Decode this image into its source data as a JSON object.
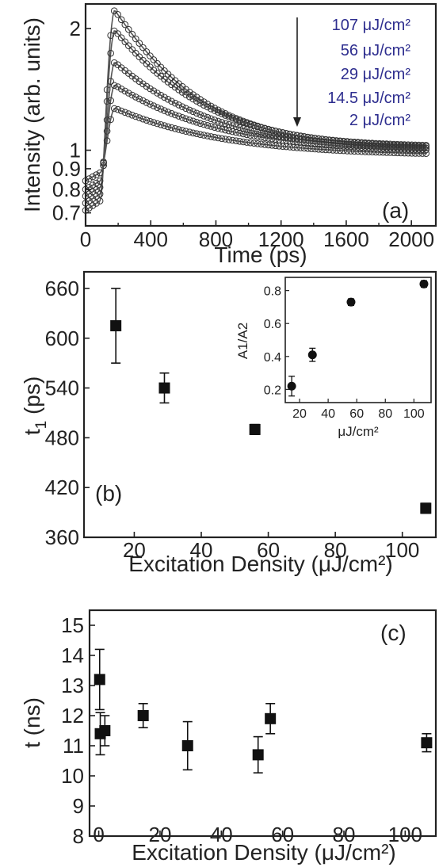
{
  "figure": {
    "panel_a": {
      "label": "(a)",
      "xlabel": "Time (ps)",
      "ylabel": "Intensity (arb. units)",
      "xticks": [
        "0",
        "400",
        "800",
        "1200",
        "1600",
        "2000"
      ],
      "yticks": [
        "0.7",
        "0.8",
        "0.9",
        "1",
        "2"
      ],
      "legend": [
        "107 μJ/cm²",
        "56 μJ/cm²",
        "29 μJ/cm²",
        "14.5 μJ/cm²",
        "2 μJ/cm²"
      ]
    },
    "panel_b": {
      "label": "(b)",
      "xlabel": "Excitation Density (μJ/cm²)",
      "ylabel_main": "t",
      "ylabel_sub": "1",
      "ylabel_unit": " (ps)",
      "xticks": [
        "20",
        "40",
        "60",
        "80",
        "100"
      ],
      "yticks": [
        "360",
        "420",
        "480",
        "540",
        "600",
        "660"
      ],
      "inset": {
        "ylabel": "A1/A2",
        "xlabel": "μJ/cm²",
        "xticks": [
          "20",
          "40",
          "60",
          "80",
          "100"
        ],
        "yticks": [
          "0.2",
          "0.4",
          "0.6",
          "0.8"
        ]
      }
    },
    "panel_c": {
      "label": "(c)",
      "xlabel": "Excitation Density (μJ/cm²)",
      "ylabel": "t (ns)",
      "xticks": [
        "0",
        "20",
        "40",
        "60",
        "80",
        "100"
      ],
      "yticks": [
        "8",
        "9",
        "10",
        "11",
        "12",
        "13",
        "14",
        "15"
      ]
    }
  },
  "chart_data": [
    {
      "type": "line",
      "panel": "a",
      "xlabel": "Time (ps)",
      "ylabel": "Intensity (arb. units)",
      "xlim": [
        0,
        2150
      ],
      "ylim": [
        0.65,
        2.3
      ],
      "yscale": "log",
      "series": [
        {
          "name": "107 μJ/cm²",
          "baseline": 0.71,
          "peak_time": 180,
          "peak": 2.22,
          "end": 1.02
        },
        {
          "name": "56 μJ/cm²",
          "baseline": 0.74,
          "peak_time": 180,
          "peak": 1.98,
          "end": 1.01
        },
        {
          "name": "29 μJ/cm²",
          "baseline": 0.77,
          "peak_time": 180,
          "peak": 1.65,
          "end": 1.0
        },
        {
          "name": "14.5 μJ/cm²",
          "baseline": 0.8,
          "peak_time": 180,
          "peak": 1.45,
          "end": 0.99
        },
        {
          "name": "2 μJ/cm²",
          "baseline": 0.84,
          "peak_time": 180,
          "peak": 1.27,
          "end": 0.97
        }
      ]
    },
    {
      "type": "scatter",
      "panel": "b",
      "xlabel": "Excitation Density (μJ/cm²)",
      "ylabel": "t1 (ps)",
      "xlim": [
        5,
        110
      ],
      "ylim": [
        360,
        680
      ],
      "points": [
        {
          "x": 14.5,
          "y": 615,
          "err": 45
        },
        {
          "x": 29,
          "y": 540,
          "err": 18
        },
        {
          "x": 56,
          "y": 490,
          "err": 6
        },
        {
          "x": 107,
          "y": 395,
          "err": 6
        }
      ]
    },
    {
      "type": "scatter",
      "panel": "b-inset",
      "xlabel": "μJ/cm²",
      "ylabel": "A1/A2",
      "xlim": [
        10,
        112
      ],
      "ylim": [
        0.12,
        0.88
      ],
      "points": [
        {
          "x": 14.5,
          "y": 0.22,
          "err": 0.06
        },
        {
          "x": 29,
          "y": 0.41,
          "err": 0.04
        },
        {
          "x": 56,
          "y": 0.73,
          "err": 0.02
        },
        {
          "x": 107,
          "y": 0.84,
          "err": 0.02
        }
      ]
    },
    {
      "type": "scatter",
      "panel": "c",
      "xlabel": "Excitation Density (μJ/cm²)",
      "ylabel": "t (ns)",
      "xlim": [
        -3,
        110
      ],
      "ylim": [
        8,
        15.5
      ],
      "points": [
        {
          "x": 0.3,
          "y": 13.2,
          "err": 1.0
        },
        {
          "x": 0.5,
          "y": 11.4,
          "err": 0.7
        },
        {
          "x": 2,
          "y": 11.5,
          "err": 0.5
        },
        {
          "x": 14.5,
          "y": 12.0,
          "err": 0.4
        },
        {
          "x": 29,
          "y": 11.0,
          "err": 0.8
        },
        {
          "x": 52,
          "y": 10.7,
          "err": 0.6
        },
        {
          "x": 56,
          "y": 11.9,
          "err": 0.5
        },
        {
          "x": 107,
          "y": 11.1,
          "err": 0.3
        }
      ]
    }
  ]
}
